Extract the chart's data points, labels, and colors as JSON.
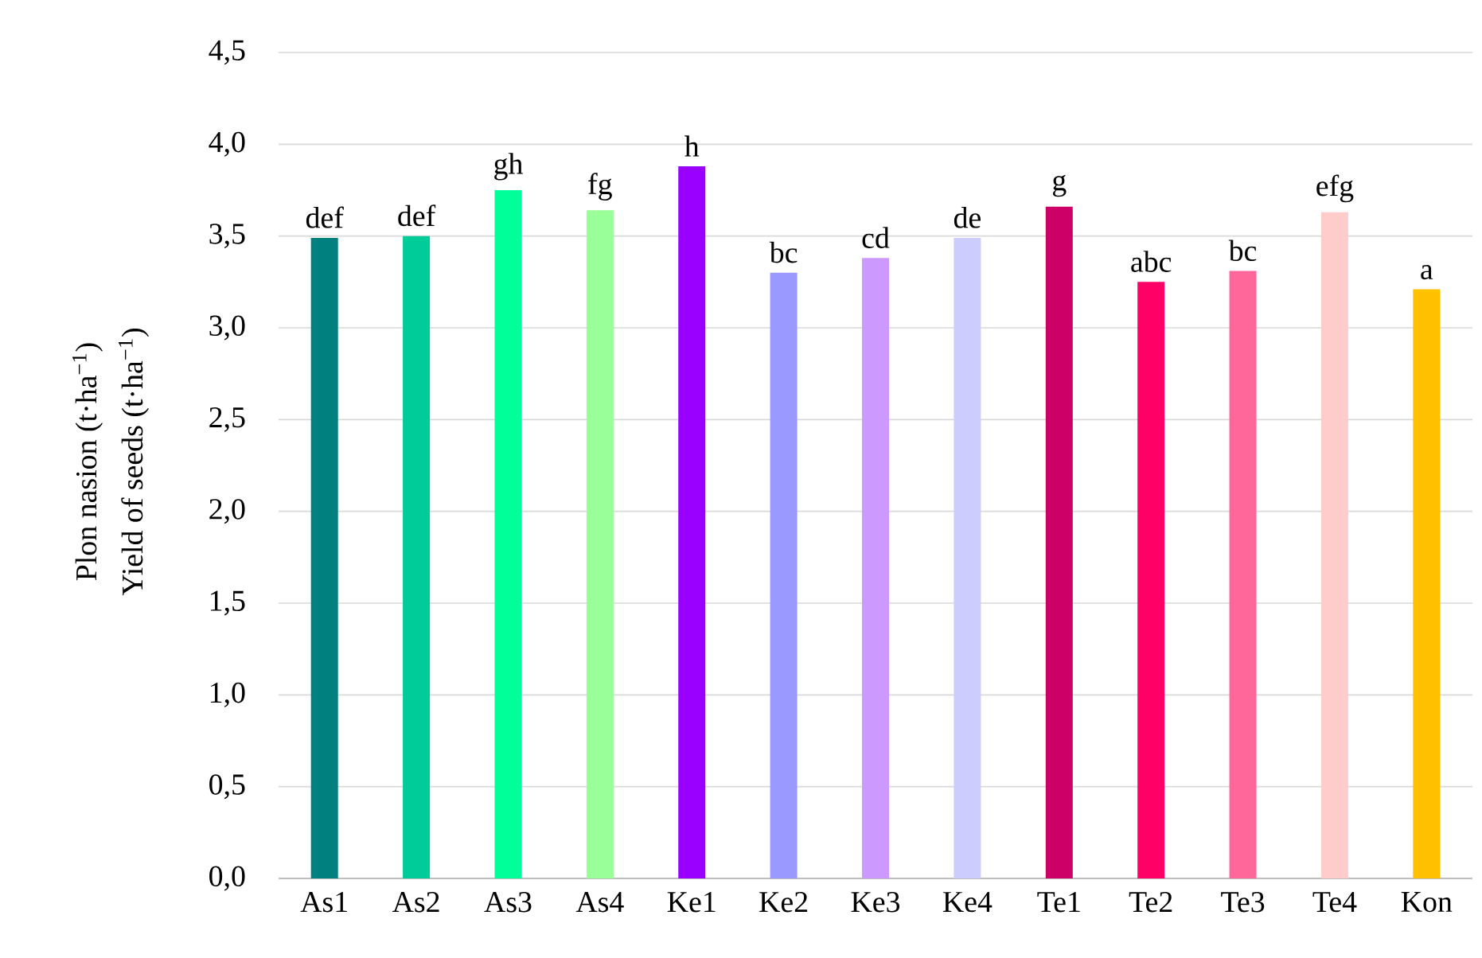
{
  "chart_data": {
    "type": "bar",
    "ylabel": "Plon nasion (t·ha$^{−1}$)",
    "categories": [
      "As1",
      "As2",
      "As3",
      "As4",
      "Ke1",
      "Ke2",
      "Ke3",
      "Ke4",
      "Te1",
      "Te2",
      "Te3",
      "Te4",
      "Kon"
    ],
    "values": [
      3.49,
      3.5,
      3.75,
      3.64,
      3.88,
      3.3,
      3.38,
      3.49,
      3.66,
      3.25,
      3.31,
      3.63,
      3.21
    ],
    "colors": [
      "#00807f",
      "#00cc99",
      "#00ff99",
      "#99ff99",
      "#9900ff",
      "#9999ff",
      "#cc99ff",
      "#ccccff",
      "#cc0066",
      "#ff0066",
      "#ff6699",
      "#ffcccc",
      "#ffc000"
    ],
    "ylim": [
      0,
      4.5
    ],
    "yticks": [
      {
        "value": 0,
        "label": "0,0"
      },
      {
        "value": 0.5,
        "label": "0,5"
      },
      {
        "value": 1,
        "label": "1,0"
      },
      {
        "value": 1.5,
        "label": "1,5"
      },
      {
        "value": 2,
        "label": "2,0"
      },
      {
        "value": 2.5,
        "label": "2,5"
      },
      {
        "value": 3,
        "label": "3,0"
      },
      {
        "value": 3.5,
        "label": "3,5"
      },
      {
        "value": 4,
        "label": "4,0"
      },
      {
        "value": 4.5,
        "label": "4,5"
      }
    ],
    "grid": "y",
    "annotations": [
      "Yield of seeds (t·ha$^{−1}$)",
      {
        "text": "def",
        "x": "As1",
        "y": 3.49
      },
      {
        "text": "def",
        "x": "As2",
        "y": 3.5
      },
      {
        "text": "gh",
        "x": "As3",
        "y": 3.75
      },
      {
        "text": "fg",
        "x": "As4",
        "y": 3.64
      },
      {
        "text": "h",
        "x": "Ke1",
        "y": 3.88
      },
      {
        "text": "bc",
        "x": "Ke2",
        "y": 3.3
      },
      {
        "text": "cd",
        "x": "Ke3",
        "y": 3.38
      },
      {
        "text": "de",
        "x": "Ke4",
        "y": 3.49
      },
      {
        "text": "g",
        "x": "Te1",
        "y": 3.66
      },
      {
        "text": "abc",
        "x": "Te2",
        "y": 3.25
      },
      {
        "text": "bc",
        "x": "Te3",
        "y": 3.31
      },
      {
        "text": "efg",
        "x": "Te4",
        "y": 3.63
      },
      {
        "text": "a",
        "x": "Kon",
        "y": 3.21
      }
    ]
  }
}
